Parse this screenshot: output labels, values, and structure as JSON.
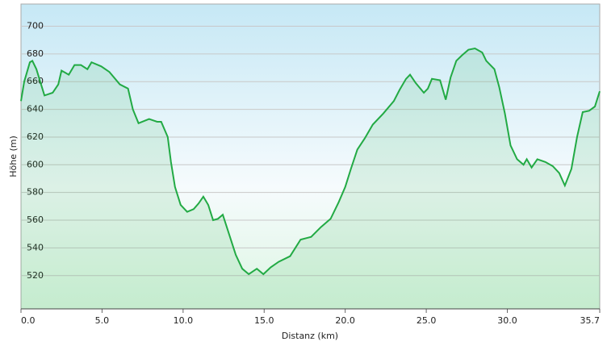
{
  "chart_data": {
    "type": "line",
    "x_label": "Distanz  (km)",
    "y_label": "Höhe (m)",
    "x": [
      0,
      0.2,
      0.55,
      0.7,
      0.95,
      1.45,
      1.95,
      2.3,
      2.5,
      2.95,
      3.3,
      3.7,
      4.1,
      4.35,
      4.95,
      5.45,
      6.1,
      6.6,
      6.9,
      7.25,
      7.9,
      8.4,
      8.65,
      9.05,
      9.25,
      9.5,
      9.85,
      10.25,
      10.65,
      10.95,
      11.25,
      11.55,
      11.85,
      12.15,
      12.45,
      12.75,
      13.25,
      13.65,
      14.05,
      14.55,
      14.95,
      15.4,
      15.9,
      16.6,
      17.25,
      17.9,
      18.5,
      19.1,
      19.6,
      20.0,
      20.35,
      20.75,
      21.2,
      21.7,
      22.35,
      23.0,
      23.35,
      23.75,
      24.0,
      24.35,
      24.85,
      25.1,
      25.35,
      25.85,
      26.2,
      26.5,
      26.85,
      27.2,
      27.6,
      28.0,
      28.45,
      28.7,
      29.2,
      29.5,
      29.85,
      30.2,
      30.6,
      31.0,
      31.2,
      31.5,
      31.85,
      32.35,
      32.8,
      33.2,
      33.55,
      33.95,
      34.3,
      34.65,
      35.05,
      35.4,
      35.7
    ],
    "series": [
      {
        "color": "#22aa44",
        "values": [
          646,
          660,
          674,
          675,
          669,
          650,
          652,
          658,
          668,
          665,
          672,
          672,
          669,
          674,
          671,
          667,
          658,
          655,
          640,
          630,
          633,
          631,
          631,
          620,
          602,
          584,
          571,
          566,
          568,
          572,
          577,
          571,
          560,
          561,
          564,
          553,
          535,
          525,
          521,
          525,
          521,
          526,
          530,
          534,
          546,
          548,
          555,
          561,
          573,
          584,
          597,
          611,
          619,
          629,
          637,
          646,
          654,
          662,
          665,
          659,
          652,
          655,
          662,
          661,
          647,
          663,
          675,
          679,
          683,
          684,
          681,
          675,
          669,
          656,
          637,
          614,
          604,
          600,
          604,
          598,
          604,
          602,
          599,
          594,
          585,
          597,
          620,
          638,
          639,
          642,
          653
        ]
      }
    ],
    "xlim": [
      0,
      35.7
    ],
    "ylim": [
      496,
      716
    ],
    "xticks": [
      {
        "value": 0,
        "label": "0.0"
      },
      {
        "value": 5,
        "label": "5.0"
      },
      {
        "value": 10,
        "label": "10.0"
      },
      {
        "value": 15,
        "label": "15.0"
      },
      {
        "value": 20,
        "label": "20.0"
      },
      {
        "value": 25,
        "label": "25.0"
      },
      {
        "value": 30,
        "label": "30.0"
      },
      {
        "value": 35.7,
        "label": "35.7"
      }
    ],
    "yticks": [
      520,
      540,
      560,
      580,
      600,
      620,
      640,
      660,
      680,
      700
    ],
    "grid": true
  }
}
